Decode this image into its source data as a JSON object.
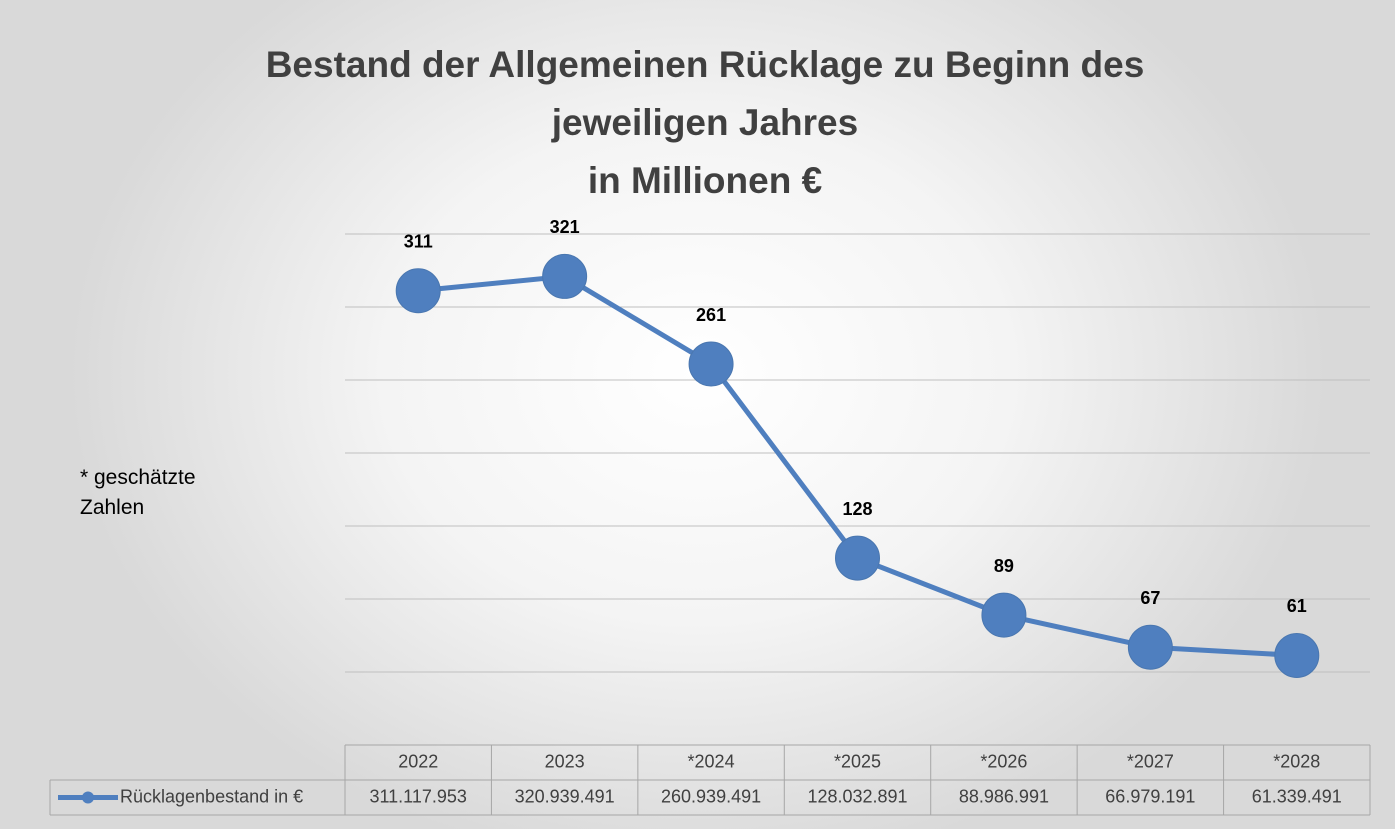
{
  "chart_data": {
    "type": "line",
    "title": "Bestand der Allgemeinen Rücklage zu Beginn des\njeweiligen Jahres\nin Millionen €",
    "annotation": "* geschätzte Zahlen",
    "categories": [
      "2022",
      "2023",
      "*2024",
      "*2025",
      "*2026",
      "*2027",
      "*2028"
    ],
    "series": [
      {
        "name": "Rücklagenbestand in €",
        "color": "#4f7fbf",
        "values": [
          311117953,
          320939491,
          260939491,
          128032891,
          88986991,
          66979191,
          61339491
        ],
        "value_labels": [
          "311",
          "321",
          "261",
          "128",
          "89",
          "67",
          "61"
        ],
        "table_labels": [
          "311.117.953",
          "320.939.491",
          "260.939.491",
          "128.032.891",
          "88.986.991",
          "66.979.191",
          "61.339.491"
        ]
      }
    ],
    "ylim": [
      0,
      350000000
    ],
    "yticks": [
      0,
      50000000,
      100000000,
      150000000,
      200000000,
      250000000,
      300000000,
      350000000
    ],
    "grid": true
  }
}
